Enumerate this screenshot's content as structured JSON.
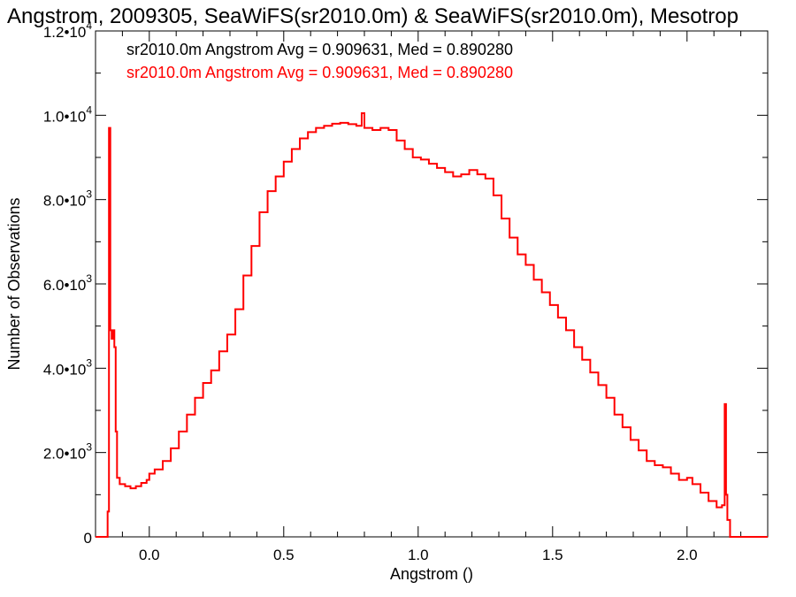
{
  "colors": {
    "background": "#ffffff",
    "axis": "#000000",
    "series_primary": "#000000",
    "series_secondary": "#ff0000"
  },
  "chart_data": {
    "type": "histogram-step",
    "title": "Angstrom, 2009305, SeaWiFS(sr2010.0m) & SeaWiFS(sr2010.0m), Mesotrop",
    "xlabel": "Angstrom ()",
    "ylabel": "Number of Observations",
    "xlim": [
      -0.2,
      2.3
    ],
    "ylim": [
      0,
      12000
    ],
    "grid": false,
    "x_ticks": [
      {
        "value": 0.0,
        "label": "0.0"
      },
      {
        "value": 0.5,
        "label": "0.5"
      },
      {
        "value": 1.0,
        "label": "1.0"
      },
      {
        "value": 1.5,
        "label": "1.5"
      },
      {
        "value": 2.0,
        "label": "2.0"
      }
    ],
    "y_ticks": [
      {
        "value": 0,
        "mantissa": "0",
        "exponent": ""
      },
      {
        "value": 2000,
        "mantissa": "2.0•10",
        "exponent": "3"
      },
      {
        "value": 4000,
        "mantissa": "4.0•10",
        "exponent": "3"
      },
      {
        "value": 6000,
        "mantissa": "6.0•10",
        "exponent": "3"
      },
      {
        "value": 8000,
        "mantissa": "8.0•10",
        "exponent": "3"
      },
      {
        "value": 10000,
        "mantissa": "1.0•10",
        "exponent": "4"
      },
      {
        "value": 12000,
        "mantissa": "1.2•10",
        "exponent": "4"
      }
    ],
    "annotations": [
      {
        "text": "sr2010.0m Angstrom Avg = 0.909631, Med = 0.890280",
        "color": "#000000"
      },
      {
        "text": "sr2010.0m Angstrom Avg = 0.909631, Med = 0.890280",
        "color": "#ff0000"
      }
    ],
    "series": [
      {
        "color": "#ff0000",
        "points": [
          [
            -0.2,
            0
          ],
          [
            -0.16,
            0
          ],
          [
            -0.155,
            600
          ],
          [
            -0.15,
            9700
          ],
          [
            -0.145,
            4900
          ],
          [
            -0.14,
            4700
          ],
          [
            -0.135,
            4900
          ],
          [
            -0.13,
            4500
          ],
          [
            -0.125,
            2500
          ],
          [
            -0.12,
            1400
          ],
          [
            -0.11,
            1250
          ],
          [
            -0.09,
            1200
          ],
          [
            -0.07,
            1150
          ],
          [
            -0.05,
            1200
          ],
          [
            -0.03,
            1280
          ],
          [
            -0.01,
            1350
          ],
          [
            0.0,
            1500
          ],
          [
            0.02,
            1600
          ],
          [
            0.05,
            1800
          ],
          [
            0.08,
            2100
          ],
          [
            0.11,
            2500
          ],
          [
            0.14,
            2900
          ],
          [
            0.17,
            3300
          ],
          [
            0.2,
            3650
          ],
          [
            0.23,
            3950
          ],
          [
            0.26,
            4400
          ],
          [
            0.29,
            4800
          ],
          [
            0.32,
            5400
          ],
          [
            0.35,
            6200
          ],
          [
            0.38,
            6900
          ],
          [
            0.41,
            7700
          ],
          [
            0.44,
            8200
          ],
          [
            0.47,
            8550
          ],
          [
            0.5,
            8900
          ],
          [
            0.53,
            9200
          ],
          [
            0.56,
            9450
          ],
          [
            0.59,
            9600
          ],
          [
            0.62,
            9700
          ],
          [
            0.65,
            9750
          ],
          [
            0.68,
            9800
          ],
          [
            0.71,
            9820
          ],
          [
            0.74,
            9790
          ],
          [
            0.77,
            9750
          ],
          [
            0.79,
            10050
          ],
          [
            0.8,
            9700
          ],
          [
            0.83,
            9650
          ],
          [
            0.86,
            9700
          ],
          [
            0.89,
            9650
          ],
          [
            0.92,
            9400
          ],
          [
            0.95,
            9200
          ],
          [
            0.98,
            9000
          ],
          [
            1.01,
            8950
          ],
          [
            1.04,
            8850
          ],
          [
            1.07,
            8750
          ],
          [
            1.1,
            8650
          ],
          [
            1.13,
            8550
          ],
          [
            1.16,
            8600
          ],
          [
            1.19,
            8700
          ],
          [
            1.22,
            8600
          ],
          [
            1.25,
            8500
          ],
          [
            1.28,
            8100
          ],
          [
            1.31,
            7550
          ],
          [
            1.34,
            7100
          ],
          [
            1.37,
            6700
          ],
          [
            1.4,
            6450
          ],
          [
            1.43,
            6100
          ],
          [
            1.46,
            5800
          ],
          [
            1.49,
            5500
          ],
          [
            1.52,
            5200
          ],
          [
            1.55,
            4900
          ],
          [
            1.58,
            4500
          ],
          [
            1.61,
            4200
          ],
          [
            1.64,
            3900
          ],
          [
            1.67,
            3600
          ],
          [
            1.7,
            3300
          ],
          [
            1.73,
            2900
          ],
          [
            1.76,
            2600
          ],
          [
            1.79,
            2300
          ],
          [
            1.82,
            2050
          ],
          [
            1.85,
            1800
          ],
          [
            1.88,
            1700
          ],
          [
            1.91,
            1650
          ],
          [
            1.94,
            1500
          ],
          [
            1.97,
            1350
          ],
          [
            2.0,
            1400
          ],
          [
            2.02,
            1250
          ],
          [
            2.05,
            1050
          ],
          [
            2.08,
            850
          ],
          [
            2.11,
            700
          ],
          [
            2.13,
            750
          ],
          [
            2.14,
            3150
          ],
          [
            2.145,
            1000
          ],
          [
            2.15,
            400
          ],
          [
            2.16,
            0
          ],
          [
            2.3,
            0
          ]
        ]
      }
    ]
  }
}
